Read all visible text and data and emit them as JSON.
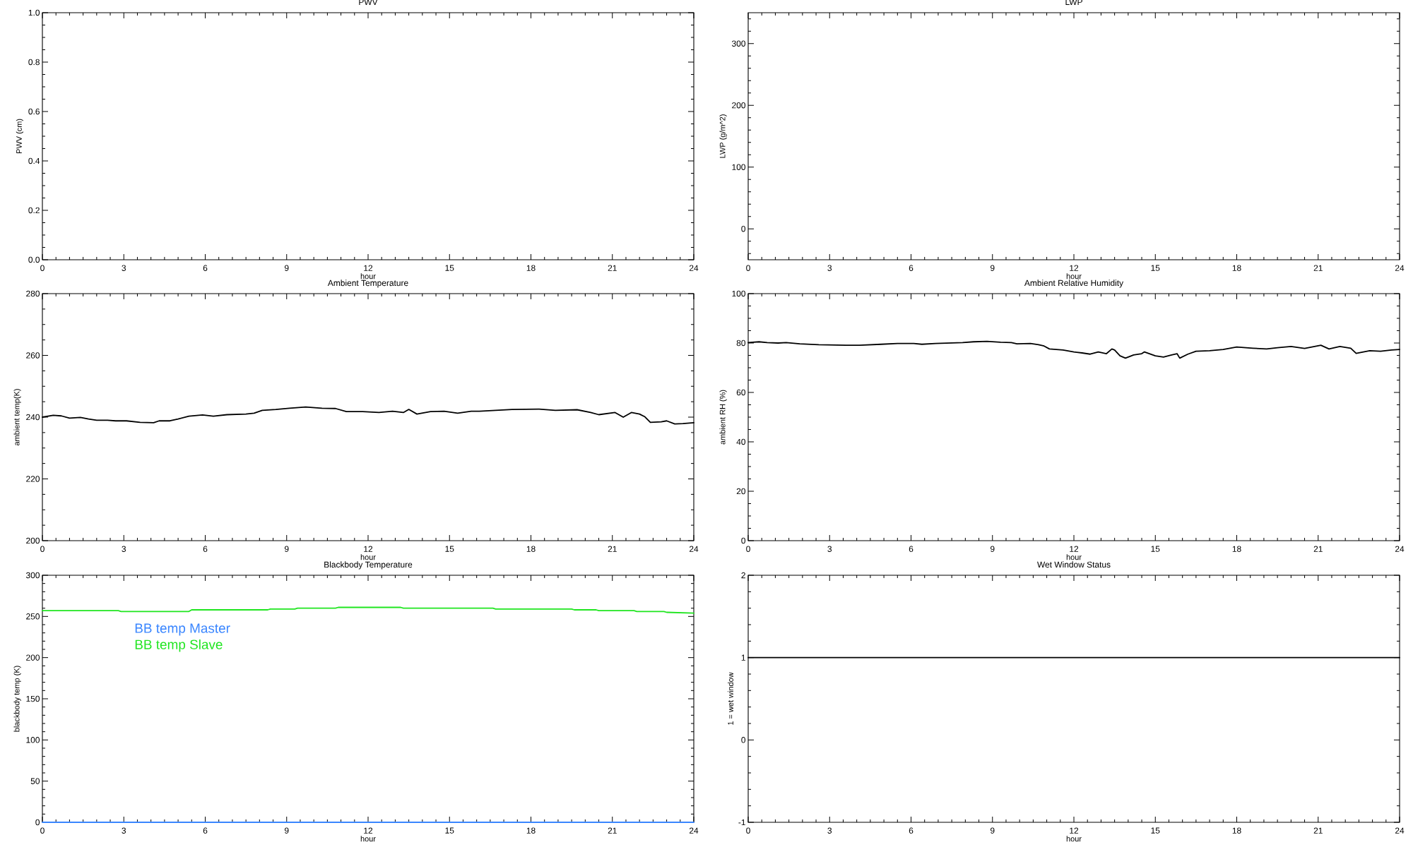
{
  "chart_data": [
    {
      "type": "line",
      "title": "PWV",
      "xlabel": "hour",
      "ylabel": "PWV (cm)",
      "xlim": [
        0,
        24
      ],
      "ylim": [
        0,
        1
      ],
      "xticks": [
        0,
        {
          "value": 0.5,
          "label": null
        },
        {
          "value": 1,
          "label": null
        },
        {
          "value": 1.5,
          "label": null
        },
        {
          "value": 2,
          "label": null
        },
        {
          "value": 2.5,
          "label": null
        },
        3,
        {
          "value": 3.5,
          "label": null
        },
        {
          "value": 4,
          "label": null
        },
        {
          "value": 4.5,
          "label": null
        },
        {
          "value": 5,
          "label": null
        },
        {
          "value": 5.5,
          "label": null
        },
        6,
        {
          "value": 6.5,
          "label": null
        },
        {
          "value": 7,
          "label": null
        },
        {
          "value": 7.5,
          "label": null
        },
        {
          "value": 8,
          "label": null
        },
        {
          "value": 8.5,
          "label": null
        },
        9,
        {
          "value": 9.5,
          "label": null
        },
        {
          "value": 10,
          "label": null
        },
        {
          "value": 10.5,
          "label": null
        },
        {
          "value": 11,
          "label": null
        },
        {
          "value": 11.5,
          "label": null
        },
        12,
        {
          "value": 12.5,
          "label": null
        },
        {
          "value": 13,
          "label": null
        },
        {
          "value": 13.5,
          "label": null
        },
        {
          "value": 14,
          "label": null
        },
        {
          "value": 14.5,
          "label": null
        },
        15,
        {
          "value": 15.5,
          "label": null
        },
        {
          "value": 16,
          "label": null
        },
        {
          "value": 16.5,
          "label": null
        },
        {
          "value": 17,
          "label": null
        },
        {
          "value": 17.5,
          "label": null
        },
        18,
        {
          "value": 18.5,
          "label": null
        },
        {
          "value": 19,
          "label": null
        },
        {
          "value": 19.5,
          "label": null
        },
        {
          "value": 20,
          "label": null
        },
        {
          "value": 20.5,
          "label": null
        },
        21,
        {
          "value": 21.5,
          "label": null
        },
        {
          "value": 22,
          "label": null
        },
        {
          "value": 22.5,
          "label": null
        },
        {
          "value": 23,
          "label": null
        },
        {
          "value": 23.5,
          "label": null
        },
        24
      ],
      "yticks": [
        {
          "value": 0,
          "label": "0.0"
        },
        {
          "value": 0.05,
          "label": null
        },
        {
          "value": 0.1,
          "label": null
        },
        {
          "value": 0.15,
          "label": null
        },
        0.2,
        {
          "value": 0.25,
          "label": null
        },
        {
          "value": 0.3,
          "label": null
        },
        {
          "value": 0.35,
          "label": null
        },
        0.4,
        {
          "value": 0.45,
          "label": null
        },
        {
          "value": 0.5,
          "label": null
        },
        {
          "value": 0.55,
          "label": null
        },
        0.6,
        {
          "value": 0.65,
          "label": null
        },
        {
          "value": 0.7,
          "label": null
        },
        {
          "value": 0.75,
          "label": null
        },
        0.8,
        {
          "value": 0.85,
          "label": null
        },
        {
          "value": 0.9,
          "label": null
        },
        {
          "value": 0.95,
          "label": null
        },
        {
          "value": 1,
          "label": "1.0"
        }
      ]
    },
    {
      "type": "line",
      "title": "LWP",
      "xlabel": "hour",
      "ylabel": "LWP (g/m^2)",
      "xlim": [
        0,
        24
      ],
      "ylim": [
        -50,
        350
      ],
      "xticks": [
        0,
        {
          "value": 0.5,
          "label": null
        },
        {
          "value": 1,
          "label": null
        },
        {
          "value": 1.5,
          "label": null
        },
        {
          "value": 2,
          "label": null
        },
        {
          "value": 2.5,
          "label": null
        },
        3,
        {
          "value": 3.5,
          "label": null
        },
        {
          "value": 4,
          "label": null
        },
        {
          "value": 4.5,
          "label": null
        },
        {
          "value": 5,
          "label": null
        },
        {
          "value": 5.5,
          "label": null
        },
        6,
        {
          "value": 6.5,
          "label": null
        },
        {
          "value": 7,
          "label": null
        },
        {
          "value": 7.5,
          "label": null
        },
        {
          "value": 8,
          "label": null
        },
        {
          "value": 8.5,
          "label": null
        },
        9,
        {
          "value": 9.5,
          "label": null
        },
        {
          "value": 10,
          "label": null
        },
        {
          "value": 10.5,
          "label": null
        },
        {
          "value": 11,
          "label": null
        },
        {
          "value": 11.5,
          "label": null
        },
        12,
        {
          "value": 12.5,
          "label": null
        },
        {
          "value": 13,
          "label": null
        },
        {
          "value": 13.5,
          "label": null
        },
        {
          "value": 14,
          "label": null
        },
        {
          "value": 14.5,
          "label": null
        },
        15,
        {
          "value": 15.5,
          "label": null
        },
        {
          "value": 16,
          "label": null
        },
        {
          "value": 16.5,
          "label": null
        },
        {
          "value": 17,
          "label": null
        },
        {
          "value": 17.5,
          "label": null
        },
        18,
        {
          "value": 18.5,
          "label": null
        },
        {
          "value": 19,
          "label": null
        },
        {
          "value": 19.5,
          "label": null
        },
        {
          "value": 20,
          "label": null
        },
        {
          "value": 20.5,
          "label": null
        },
        21,
        {
          "value": 21.5,
          "label": null
        },
        {
          "value": 22,
          "label": null
        },
        {
          "value": 22.5,
          "label": null
        },
        {
          "value": 23,
          "label": null
        },
        {
          "value": 23.5,
          "label": null
        },
        24
      ],
      "yticks": [
        {
          "value": -40,
          "label": null
        },
        {
          "value": -20,
          "label": null
        },
        0,
        {
          "value": 20,
          "label": null
        },
        {
          "value": 40,
          "label": null
        },
        {
          "value": 60,
          "label": null
        },
        {
          "value": 80,
          "label": null
        },
        100,
        {
          "value": 120,
          "label": null
        },
        {
          "value": 140,
          "label": null
        },
        {
          "value": 160,
          "label": null
        },
        {
          "value": 180,
          "label": null
        },
        200,
        {
          "value": 220,
          "label": null
        },
        {
          "value": 240,
          "label": null
        },
        {
          "value": 260,
          "label": null
        },
        {
          "value": 280,
          "label": null
        },
        300,
        {
          "value": 320,
          "label": null
        },
        {
          "value": 340,
          "label": null
        }
      ]
    },
    {
      "type": "line",
      "title": "Ambient Temperature",
      "xlabel": "hour",
      "ylabel": "ambient temp(K)",
      "xlim": [
        0,
        24
      ],
      "ylim": [
        200,
        280
      ],
      "xticks": [
        0,
        {
          "value": 0.5,
          "label": null
        },
        {
          "value": 1,
          "label": null
        },
        {
          "value": 1.5,
          "label": null
        },
        {
          "value": 2,
          "label": null
        },
        {
          "value": 2.5,
          "label": null
        },
        3,
        {
          "value": 3.5,
          "label": null
        },
        {
          "value": 4,
          "label": null
        },
        {
          "value": 4.5,
          "label": null
        },
        {
          "value": 5,
          "label": null
        },
        {
          "value": 5.5,
          "label": null
        },
        6,
        {
          "value": 6.5,
          "label": null
        },
        {
          "value": 7,
          "label": null
        },
        {
          "value": 7.5,
          "label": null
        },
        {
          "value": 8,
          "label": null
        },
        {
          "value": 8.5,
          "label": null
        },
        9,
        {
          "value": 9.5,
          "label": null
        },
        {
          "value": 10,
          "label": null
        },
        {
          "value": 10.5,
          "label": null
        },
        {
          "value": 11,
          "label": null
        },
        {
          "value": 11.5,
          "label": null
        },
        12,
        {
          "value": 12.5,
          "label": null
        },
        {
          "value": 13,
          "label": null
        },
        {
          "value": 13.5,
          "label": null
        },
        {
          "value": 14,
          "label": null
        },
        {
          "value": 14.5,
          "label": null
        },
        15,
        {
          "value": 15.5,
          "label": null
        },
        {
          "value": 16,
          "label": null
        },
        {
          "value": 16.5,
          "label": null
        },
        {
          "value": 17,
          "label": null
        },
        {
          "value": 17.5,
          "label": null
        },
        18,
        {
          "value": 18.5,
          "label": null
        },
        {
          "value": 19,
          "label": null
        },
        {
          "value": 19.5,
          "label": null
        },
        {
          "value": 20,
          "label": null
        },
        {
          "value": 20.5,
          "label": null
        },
        21,
        {
          "value": 21.5,
          "label": null
        },
        {
          "value": 22,
          "label": null
        },
        {
          "value": 22.5,
          "label": null
        },
        {
          "value": 23,
          "label": null
        },
        {
          "value": 23.5,
          "label": null
        },
        24
      ],
      "yticks": [
        200,
        {
          "value": 205,
          "label": null
        },
        {
          "value": 210,
          "label": null
        },
        {
          "value": 215,
          "label": null
        },
        220,
        {
          "value": 225,
          "label": null
        },
        {
          "value": 230,
          "label": null
        },
        {
          "value": 235,
          "label": null
        },
        240,
        {
          "value": 245,
          "label": null
        },
        {
          "value": 250,
          "label": null
        },
        {
          "value": 255,
          "label": null
        },
        260,
        {
          "value": 265,
          "label": null
        },
        {
          "value": 270,
          "label": null
        },
        {
          "value": 275,
          "label": null
        },
        280
      ],
      "series": [
        {
          "color": "#000000",
          "x": [
            0,
            0.4,
            0.7,
            1.0,
            1.4,
            1.7,
            2.0,
            2.4,
            2.7,
            3.1,
            3.6,
            4.1,
            4.3,
            4.7,
            5.0,
            5.4,
            5.9,
            6.3,
            6.8,
            7.5,
            7.8,
            8.1,
            8.6,
            9.1,
            9.7,
            10.3,
            10.8,
            11.2,
            11.8,
            12.4,
            12.9,
            13.3,
            13.5,
            13.8,
            14.3,
            14.8,
            15.3,
            15.8,
            16.1,
            16.7,
            17.3,
            18.3,
            18.9,
            19.7,
            20.2,
            20.5,
            21.1,
            21.4,
            21.7,
            22.0,
            22.2,
            22.4,
            22.8,
            23.0,
            23.3,
            23.6,
            24
          ],
          "values": [
            240.0,
            240.6,
            240.4,
            239.7,
            239.9,
            239.4,
            239.0,
            239.0,
            238.8,
            238.8,
            238.3,
            238.2,
            238.8,
            238.8,
            239.4,
            240.3,
            240.7,
            240.3,
            240.8,
            241.0,
            241.3,
            242.2,
            242.5,
            242.9,
            243.3,
            242.9,
            242.8,
            241.8,
            241.8,
            241.5,
            241.9,
            241.5,
            242.5,
            241.0,
            241.8,
            241.9,
            241.3,
            241.9,
            241.9,
            242.2,
            242.5,
            242.6,
            242.2,
            242.4,
            241.5,
            240.8,
            241.5,
            240.0,
            241.5,
            241.0,
            240.1,
            238.3,
            238.5,
            238.8,
            237.8,
            237.9,
            238.2
          ]
        }
      ]
    },
    {
      "type": "line",
      "title": "Ambient Relative Humidity",
      "xlabel": "hour",
      "ylabel": "ambient RH (%)",
      "xlim": [
        0,
        24
      ],
      "ylim": [
        0,
        100
      ],
      "xticks": [
        0,
        {
          "value": 0.5,
          "label": null
        },
        {
          "value": 1,
          "label": null
        },
        {
          "value": 1.5,
          "label": null
        },
        {
          "value": 2,
          "label": null
        },
        {
          "value": 2.5,
          "label": null
        },
        3,
        {
          "value": 3.5,
          "label": null
        },
        {
          "value": 4,
          "label": null
        },
        {
          "value": 4.5,
          "label": null
        },
        {
          "value": 5,
          "label": null
        },
        {
          "value": 5.5,
          "label": null
        },
        6,
        {
          "value": 6.5,
          "label": null
        },
        {
          "value": 7,
          "label": null
        },
        {
          "value": 7.5,
          "label": null
        },
        {
          "value": 8,
          "label": null
        },
        {
          "value": 8.5,
          "label": null
        },
        9,
        {
          "value": 9.5,
          "label": null
        },
        {
          "value": 10,
          "label": null
        },
        {
          "value": 10.5,
          "label": null
        },
        {
          "value": 11,
          "label": null
        },
        {
          "value": 11.5,
          "label": null
        },
        12,
        {
          "value": 12.5,
          "label": null
        },
        {
          "value": 13,
          "label": null
        },
        {
          "value": 13.5,
          "label": null
        },
        {
          "value": 14,
          "label": null
        },
        {
          "value": 14.5,
          "label": null
        },
        15,
        {
          "value": 15.5,
          "label": null
        },
        {
          "value": 16,
          "label": null
        },
        {
          "value": 16.5,
          "label": null
        },
        {
          "value": 17,
          "label": null
        },
        {
          "value": 17.5,
          "label": null
        },
        18,
        {
          "value": 18.5,
          "label": null
        },
        {
          "value": 19,
          "label": null
        },
        {
          "value": 19.5,
          "label": null
        },
        {
          "value": 20,
          "label": null
        },
        {
          "value": 20.5,
          "label": null
        },
        21,
        {
          "value": 21.5,
          "label": null
        },
        {
          "value": 22,
          "label": null
        },
        {
          "value": 22.5,
          "label": null
        },
        {
          "value": 23,
          "label": null
        },
        {
          "value": 23.5,
          "label": null
        },
        24
      ],
      "yticks": [
        0,
        {
          "value": 5,
          "label": null
        },
        {
          "value": 10,
          "label": null
        },
        {
          "value": 15,
          "label": null
        },
        20,
        {
          "value": 25,
          "label": null
        },
        {
          "value": 30,
          "label": null
        },
        {
          "value": 35,
          "label": null
        },
        40,
        {
          "value": 45,
          "label": null
        },
        {
          "value": 50,
          "label": null
        },
        {
          "value": 55,
          "label": null
        },
        60,
        {
          "value": 65,
          "label": null
        },
        {
          "value": 70,
          "label": null
        },
        {
          "value": 75,
          "label": null
        },
        80,
        {
          "value": 85,
          "label": null
        },
        {
          "value": 90,
          "label": null
        },
        {
          "value": 95,
          "label": null
        },
        100
      ],
      "series": [
        {
          "color": "#000000",
          "x": [
            0,
            0.4,
            0.7,
            1.1,
            1.4,
            1.9,
            2.6,
            3.6,
            4.1,
            4.5,
            4.9,
            5.5,
            6.1,
            6.4,
            6.9,
            7.9,
            8.3,
            8.8,
            9.3,
            9.7,
            9.9,
            10.4,
            10.7,
            10.9,
            11.1,
            11.6,
            12.0,
            12.3,
            12.6,
            12.9,
            13.2,
            13.4,
            13.5,
            13.7,
            13.9,
            14.2,
            14.5,
            14.6,
            15.0,
            15.3,
            15.6,
            15.8,
            15.9,
            16.2,
            16.5,
            17.0,
            17.5,
            18.0,
            18.6,
            19.1,
            19.5,
            20.0,
            20.5,
            21.1,
            21.4,
            21.8,
            22.2,
            22.4,
            22.9,
            23.3,
            23.7,
            24
          ],
          "values": [
            80.2,
            80.5,
            80.2,
            80.0,
            80.2,
            79.7,
            79.3,
            79.1,
            79.1,
            79.3,
            79.5,
            79.8,
            79.8,
            79.5,
            79.8,
            80.2,
            80.5,
            80.7,
            80.3,
            80.2,
            79.7,
            79.8,
            79.3,
            78.8,
            77.6,
            77.2,
            76.4,
            76.0,
            75.5,
            76.4,
            75.7,
            77.6,
            77.2,
            74.8,
            73.9,
            75.2,
            75.7,
            76.4,
            74.8,
            74.3,
            75.2,
            75.7,
            73.9,
            75.5,
            76.7,
            76.9,
            77.4,
            78.4,
            77.9,
            77.6,
            78.1,
            78.6,
            77.8,
            79.1,
            77.6,
            78.6,
            77.9,
            75.8,
            76.9,
            76.7,
            77.2,
            77.4
          ]
        }
      ]
    },
    {
      "type": "line",
      "title": "Blackbody Temperature",
      "xlabel": "hour",
      "ylabel": "blackbody temp (K)",
      "xlim": [
        0,
        24
      ],
      "ylim": [
        0,
        300
      ],
      "legend": "top left",
      "xticks": [
        0,
        {
          "value": 0.5,
          "label": null
        },
        {
          "value": 1,
          "label": null
        },
        {
          "value": 1.5,
          "label": null
        },
        {
          "value": 2,
          "label": null
        },
        {
          "value": 2.5,
          "label": null
        },
        3,
        {
          "value": 3.5,
          "label": null
        },
        {
          "value": 4,
          "label": null
        },
        {
          "value": 4.5,
          "label": null
        },
        {
          "value": 5,
          "label": null
        },
        {
          "value": 5.5,
          "label": null
        },
        6,
        {
          "value": 6.5,
          "label": null
        },
        {
          "value": 7,
          "label": null
        },
        {
          "value": 7.5,
          "label": null
        },
        {
          "value": 8,
          "label": null
        },
        {
          "value": 8.5,
          "label": null
        },
        9,
        {
          "value": 9.5,
          "label": null
        },
        {
          "value": 10,
          "label": null
        },
        {
          "value": 10.5,
          "label": null
        },
        {
          "value": 11,
          "label": null
        },
        {
          "value": 11.5,
          "label": null
        },
        12,
        {
          "value": 12.5,
          "label": null
        },
        {
          "value": 13,
          "label": null
        },
        {
          "value": 13.5,
          "label": null
        },
        {
          "value": 14,
          "label": null
        },
        {
          "value": 14.5,
          "label": null
        },
        15,
        {
          "value": 15.5,
          "label": null
        },
        {
          "value": 16,
          "label": null
        },
        {
          "value": 16.5,
          "label": null
        },
        {
          "value": 17,
          "label": null
        },
        {
          "value": 17.5,
          "label": null
        },
        18,
        {
          "value": 18.5,
          "label": null
        },
        {
          "value": 19,
          "label": null
        },
        {
          "value": 19.5,
          "label": null
        },
        {
          "value": 20,
          "label": null
        },
        {
          "value": 20.5,
          "label": null
        },
        21,
        {
          "value": 21.5,
          "label": null
        },
        {
          "value": 22,
          "label": null
        },
        {
          "value": 22.5,
          "label": null
        },
        {
          "value": 23,
          "label": null
        },
        {
          "value": 23.5,
          "label": null
        },
        24
      ],
      "yticks": [
        0,
        {
          "value": 10,
          "label": null
        },
        {
          "value": 20,
          "label": null
        },
        {
          "value": 30,
          "label": null
        },
        {
          "value": 40,
          "label": null
        },
        50,
        {
          "value": 60,
          "label": null
        },
        {
          "value": 70,
          "label": null
        },
        {
          "value": 80,
          "label": null
        },
        {
          "value": 90,
          "label": null
        },
        100,
        {
          "value": 110,
          "label": null
        },
        {
          "value": 120,
          "label": null
        },
        {
          "value": 130,
          "label": null
        },
        {
          "value": 140,
          "label": null
        },
        150,
        {
          "value": 160,
          "label": null
        },
        {
          "value": 170,
          "label": null
        },
        {
          "value": 180,
          "label": null
        },
        {
          "value": 190,
          "label": null
        },
        200,
        {
          "value": 210,
          "label": null
        },
        {
          "value": 220,
          "label": null
        },
        {
          "value": 230,
          "label": null
        },
        {
          "value": 240,
          "label": null
        },
        250,
        {
          "value": 260,
          "label": null
        },
        {
          "value": 270,
          "label": null
        },
        {
          "value": 280,
          "label": null
        },
        {
          "value": 290,
          "label": null
        },
        300
      ],
      "series": [
        {
          "name": "BB temp Master",
          "color": "#3a86ff",
          "x": [
            0,
            24
          ],
          "values": [
            0,
            0
          ]
        },
        {
          "name": "BB temp Slave",
          "color": "#1fe51f",
          "x": [
            0,
            2.8,
            2.9,
            5.4,
            5.5,
            8.3,
            8.4,
            9.3,
            9.4,
            10.8,
            10.9,
            13.2,
            13.3,
            16.6,
            16.7,
            19.5,
            19.6,
            20.4,
            20.5,
            21.8,
            21.9,
            22.9,
            23.0,
            24
          ],
          "values": [
            257,
            257,
            256,
            256,
            258,
            258,
            259,
            259,
            260,
            260,
            261,
            261,
            260,
            260,
            259,
            259,
            258,
            258,
            257,
            257,
            256,
            256,
            255,
            254
          ]
        }
      ]
    },
    {
      "type": "line",
      "title": "Wet Window Status",
      "xlabel": "hour",
      "ylabel": "1 = wet window",
      "xlim": [
        0,
        24
      ],
      "ylim": [
        -1,
        2
      ],
      "xticks": [
        0,
        {
          "value": 0.5,
          "label": null
        },
        {
          "value": 1,
          "label": null
        },
        {
          "value": 1.5,
          "label": null
        },
        {
          "value": 2,
          "label": null
        },
        {
          "value": 2.5,
          "label": null
        },
        3,
        {
          "value": 3.5,
          "label": null
        },
        {
          "value": 4,
          "label": null
        },
        {
          "value": 4.5,
          "label": null
        },
        {
          "value": 5,
          "label": null
        },
        {
          "value": 5.5,
          "label": null
        },
        6,
        {
          "value": 6.5,
          "label": null
        },
        {
          "value": 7,
          "label": null
        },
        {
          "value": 7.5,
          "label": null
        },
        {
          "value": 8,
          "label": null
        },
        {
          "value": 8.5,
          "label": null
        },
        9,
        {
          "value": 9.5,
          "label": null
        },
        {
          "value": 10,
          "label": null
        },
        {
          "value": 10.5,
          "label": null
        },
        {
          "value": 11,
          "label": null
        },
        {
          "value": 11.5,
          "label": null
        },
        12,
        {
          "value": 12.5,
          "label": null
        },
        {
          "value": 13,
          "label": null
        },
        {
          "value": 13.5,
          "label": null
        },
        {
          "value": 14,
          "label": null
        },
        {
          "value": 14.5,
          "label": null
        },
        15,
        {
          "value": 15.5,
          "label": null
        },
        {
          "value": 16,
          "label": null
        },
        {
          "value": 16.5,
          "label": null
        },
        {
          "value": 17,
          "label": null
        },
        {
          "value": 17.5,
          "label": null
        },
        18,
        {
          "value": 18.5,
          "label": null
        },
        {
          "value": 19,
          "label": null
        },
        {
          "value": 19.5,
          "label": null
        },
        {
          "value": 20,
          "label": null
        },
        {
          "value": 20.5,
          "label": null
        },
        21,
        {
          "value": 21.5,
          "label": null
        },
        {
          "value": 22,
          "label": null
        },
        {
          "value": 22.5,
          "label": null
        },
        {
          "value": 23,
          "label": null
        },
        {
          "value": 23.5,
          "label": null
        },
        24
      ],
      "yticks": [
        -1,
        {
          "value": -0.8,
          "label": null
        },
        {
          "value": -0.6,
          "label": null
        },
        {
          "value": -0.4,
          "label": null
        },
        {
          "value": -0.2,
          "label": null
        },
        0,
        {
          "value": 0.2,
          "label": null
        },
        {
          "value": 0.4,
          "label": null
        },
        {
          "value": 0.6,
          "label": null
        },
        {
          "value": 0.8,
          "label": null
        },
        1,
        {
          "value": 1.2,
          "label": null
        },
        {
          "value": 1.4,
          "label": null
        },
        {
          "value": 1.6,
          "label": null
        },
        {
          "value": 1.8,
          "label": null
        },
        2
      ],
      "series": [
        {
          "color": "#000000",
          "x": [
            0,
            24
          ],
          "values": [
            1,
            1
          ]
        }
      ]
    }
  ]
}
